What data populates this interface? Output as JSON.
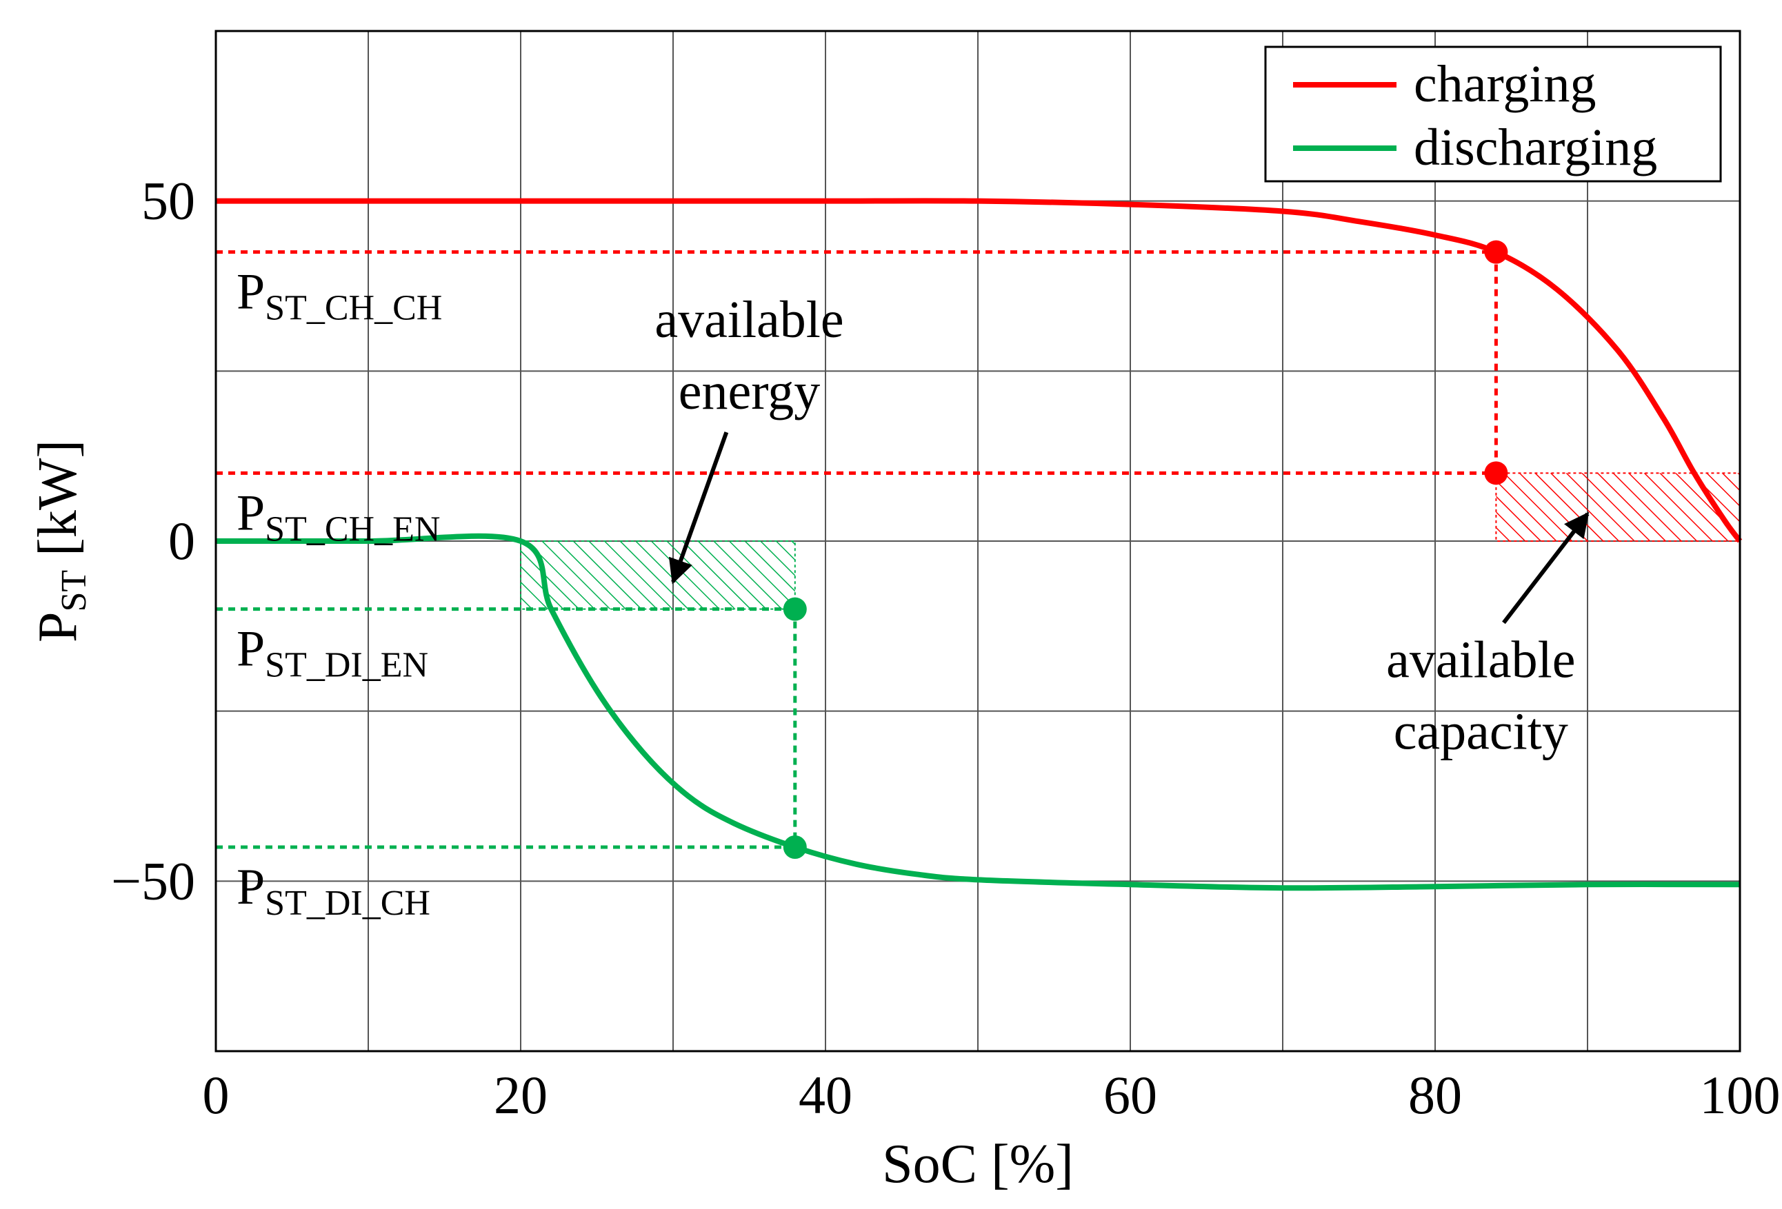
{
  "chart_data": {
    "type": "line",
    "xlabel": "SoC [%]",
    "ylabel_main": "P",
    "ylabel_sub": "ST",
    "ylabel_unit": " [kW]",
    "xlim": [
      0,
      100
    ],
    "ylim": [
      -75,
      75
    ],
    "x_ticks": [
      0,
      20,
      40,
      60,
      80,
      100
    ],
    "x_tick_labels": [
      "0",
      "20",
      "40",
      "60",
      "80",
      "100"
    ],
    "x_grid": [
      0,
      10,
      20,
      30,
      40,
      50,
      60,
      70,
      80,
      90,
      100
    ],
    "y_ticks": [
      50,
      0,
      -50
    ],
    "y_tick_labels": [
      "50",
      "0",
      "−50"
    ],
    "y_grid": [
      50,
      25,
      0,
      -25,
      -50
    ],
    "grid": true,
    "legend_position": "top-right",
    "colors": {
      "charging": "#ff0000",
      "discharging": "#00b050"
    },
    "series": [
      {
        "name": "charging",
        "color": "#ff0000",
        "x": [
          0,
          10,
          20,
          30,
          40,
          50,
          60,
          70,
          75,
          80,
          84,
          88,
          92,
          95,
          97,
          99,
          100
        ],
        "y": [
          50,
          50,
          50,
          50,
          50,
          50,
          49.5,
          48.5,
          47,
          45,
          42.5,
          37,
          28,
          18,
          10,
          3,
          0
        ]
      },
      {
        "name": "discharging",
        "color": "#00b050",
        "x": [
          0,
          10,
          20,
          22,
          25,
          28,
          31,
          34,
          38,
          42,
          46,
          50,
          60,
          70,
          80,
          90,
          100
        ],
        "y": [
          0,
          0,
          0,
          -10,
          -22,
          -31,
          -37.5,
          -41.5,
          -45,
          -47.5,
          -49,
          -49.8,
          -50.5,
          -51,
          -50.8,
          -50.5,
          -50.5
        ]
      }
    ],
    "reference_levels": [
      {
        "main": "P",
        "sub": "ST_CH_CH",
        "y": 42.5,
        "x_end": 84,
        "color": "#ff0000"
      },
      {
        "main": "P",
        "sub": "ST_CH_EN",
        "y": 10,
        "x_end": 84,
        "color": "#ff0000"
      },
      {
        "main": "P",
        "sub": "ST_DI_EN",
        "y": -10,
        "x_end": 38,
        "color": "#00b050"
      },
      {
        "main": "P",
        "sub": "ST_DI_CH",
        "y": -45,
        "x_end": 38,
        "color": "#00b050"
      }
    ],
    "vertical_markers": [
      {
        "x": 84,
        "y_from": 10,
        "y_to": 42.5,
        "color": "#ff0000"
      },
      {
        "x": 38,
        "y_from": -45,
        "y_to": -10,
        "color": "#00b050"
      }
    ],
    "markers": [
      {
        "x": 84,
        "y": 42.5,
        "color": "#ff0000"
      },
      {
        "x": 84,
        "y": 10,
        "color": "#ff0000"
      },
      {
        "x": 38,
        "y": -10,
        "color": "#00b050"
      },
      {
        "x": 38,
        "y": -45,
        "color": "#00b050"
      }
    ],
    "shaded_regions": [
      {
        "name": "available-energy-region",
        "x0": 20,
        "x1": 38,
        "y0": -10,
        "y1": 0,
        "color": "#00b050"
      },
      {
        "name": "available-capacity-region",
        "x0": 84,
        "x1": 100,
        "y0": 0,
        "y1": 10,
        "color": "#ff0000"
      }
    ],
    "annotations": [
      {
        "lines": [
          "available",
          "energy"
        ],
        "text_x": 35,
        "text_y": 30,
        "arrow_from": [
          33.5,
          16
        ],
        "arrow_to": [
          30,
          -6
        ]
      },
      {
        "lines": [
          "available",
          "capacity"
        ],
        "text_x": 83,
        "text_y": -20,
        "arrow_from": [
          84.5,
          -12
        ],
        "arrow_to": [
          90,
          4
        ]
      }
    ]
  }
}
